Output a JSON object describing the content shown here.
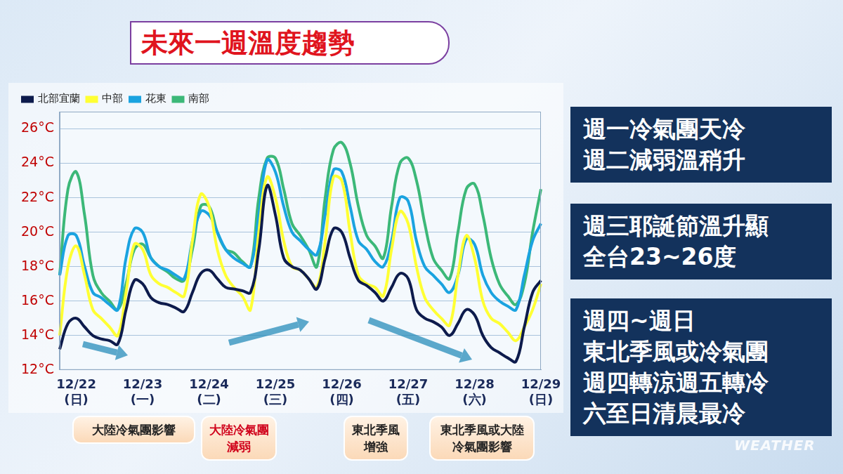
{
  "chart_data": {
    "type": "line",
    "title": "未來一週溫度趨勢",
    "categories": [
      null,
      null,
      "12/22\n(日)",
      null,
      null,
      null,
      null,
      null,
      null,
      null,
      "12/23\n(一)",
      null,
      null,
      null,
      null,
      null,
      null,
      null,
      "12/24\n(二)",
      null,
      null,
      null,
      null,
      null,
      null,
      null,
      "12/25\n(三)",
      null,
      null,
      null,
      null,
      null,
      null,
      null,
      "12/26\n(四)",
      null,
      null,
      null,
      null,
      null,
      null,
      null,
      "12/27\n(五)",
      null,
      null,
      null,
      null,
      null,
      null,
      null,
      "12/28\n(六)",
      null,
      null,
      null,
      null,
      null,
      null,
      null,
      "12/29\n(日)"
    ],
    "series": [
      {
        "name": "北部宜蘭",
        "color": "#0d1b4c",
        "values": [
          13.2,
          14.7,
          15,
          14.5,
          14,
          13.8,
          13.7,
          13.5,
          15.5,
          17.2,
          17,
          16.2,
          15.9,
          15.8,
          15.6,
          15.4,
          16.5,
          17.6,
          17.8,
          17.3,
          16.8,
          16.7,
          16.6,
          16.5,
          19,
          22.7,
          21,
          18.5,
          18,
          17.8,
          17.3,
          16.7,
          18.5,
          20.2,
          20,
          18.5,
          17.2,
          16.9,
          16.5,
          16,
          16.8,
          17.6,
          17.3,
          15.5,
          15,
          14.8,
          14.5,
          14,
          14.7,
          15.5,
          15.2,
          14,
          13.3,
          13,
          12.7,
          12.5,
          14.5,
          16.5,
          17.2
        ]
      },
      {
        "name": "中部",
        "color": "#ffff33",
        "values": [
          14,
          18,
          19.2,
          17.5,
          15.5,
          15,
          14.5,
          14,
          16.5,
          19.3,
          19,
          17.5,
          17,
          16.8,
          16.5,
          16.3,
          19.5,
          22.2,
          21.5,
          19,
          17.5,
          16.8,
          16.3,
          15.5,
          20,
          23.2,
          22,
          19.5,
          18,
          17.8,
          17.3,
          16.8,
          19.5,
          23.2,
          23,
          20,
          17.5,
          17,
          16.8,
          16.3,
          19,
          21.2,
          20.5,
          18,
          16.2,
          15.5,
          15,
          14.6,
          17.5,
          19.8,
          18.5,
          16,
          15,
          14.7,
          14.2,
          13.7,
          14.5,
          15.5,
          17
        ]
      },
      {
        "name": "花東",
        "color": "#1aa3e0",
        "values": [
          17.5,
          19.8,
          19.8,
          18,
          16.5,
          16.2,
          15.8,
          15.5,
          18.5,
          20.2,
          20,
          18.5,
          18,
          17.8,
          17.5,
          17.3,
          19.5,
          21.2,
          21,
          20,
          19,
          18.5,
          18.2,
          18,
          21,
          24.2,
          23.5,
          21.5,
          20,
          19.5,
          19,
          18.7,
          21,
          23.6,
          23.5,
          21.5,
          19.5,
          19,
          18.3,
          18,
          19.5,
          22,
          21.8,
          19.5,
          18,
          17.5,
          17,
          16.5,
          17.5,
          19.6,
          19.3,
          17.5,
          16.5,
          16,
          15.7,
          15.5,
          17.5,
          19.5,
          20.5
        ]
      },
      {
        "name": "南部",
        "color": "#3cb878",
        "values": [
          17.5,
          22.5,
          23.5,
          21,
          17.5,
          16.5,
          16,
          15.5,
          17,
          19,
          19.3,
          18.5,
          18,
          17.7,
          17.3,
          17.2,
          19,
          21.5,
          21.5,
          20,
          19,
          18.8,
          18.3,
          18,
          22,
          24.3,
          24.3,
          22.5,
          20.5,
          19.8,
          19,
          18,
          22,
          24.8,
          25.2,
          24,
          21.5,
          19.8,
          19.2,
          18.5,
          21.5,
          24,
          24.3,
          23,
          20.5,
          18.5,
          17.8,
          17.3,
          20,
          22.5,
          22.8,
          21,
          18.5,
          17,
          16.3,
          15.8,
          17,
          20,
          22.5
        ]
      }
    ],
    "ylim": [
      12,
      27
    ],
    "yticks": [
      {
        "value": 12,
        "label": "12°C"
      },
      {
        "value": 14,
        "label": "14°C"
      },
      {
        "value": 16,
        "label": "16°C"
      },
      {
        "value": 18,
        "label": "18°C"
      },
      {
        "value": 20,
        "label": "20°C"
      },
      {
        "value": 22,
        "label": "22°C"
      },
      {
        "value": 24,
        "label": "24°C"
      },
      {
        "value": 26,
        "label": "26°C"
      }
    ],
    "grid": true,
    "legend": "top-left",
    "annotations": [
      "大陸冷氣團影響",
      "大陸冷氣團減弱",
      "東北季風增強",
      "東北季風或大陸冷氣團影響"
    ]
  },
  "notes": [
    [
      "週一冷氣團天冷",
      "週二減弱溫稍升"
    ],
    [
      "週三耶誕節溫升顯",
      "全台23~26度"
    ],
    [
      "週四~週日",
      "東北季風或冷氣團",
      "週四轉涼週五轉冷",
      "六至日清晨最冷"
    ]
  ],
  "watermark": "WEATHER"
}
